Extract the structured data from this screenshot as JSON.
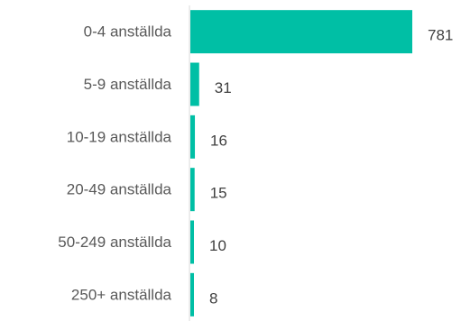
{
  "chart_data": {
    "type": "bar",
    "orientation": "horizontal",
    "categories": [
      "0-4 anställda",
      "5-9 anställda",
      "10-19 anställda",
      "20-49 anställda",
      "50-249 anställda",
      "250+ anställda"
    ],
    "values": [
      781,
      31,
      16,
      15,
      10,
      8
    ],
    "value_labels": [
      "781",
      "31",
      "16",
      "15",
      "10",
      "8"
    ],
    "xlim": [
      0,
      800
    ],
    "grid": false,
    "legend": "none",
    "bar_color": "#00BFA5",
    "axis_color": "#D9D9D9"
  }
}
